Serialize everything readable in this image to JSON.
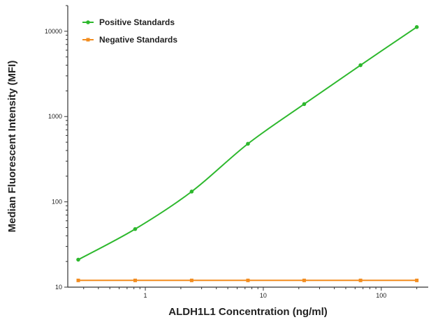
{
  "chart_data": {
    "type": "scatter",
    "xlabel": "ALDH1L1 Concentration (ng/ml)",
    "ylabel": "Median Fluorescent Intensity (MFI)",
    "xscale": "log",
    "yscale": "log",
    "xlim": [
      0.22,
      250
    ],
    "ylim": [
      10,
      20000
    ],
    "x_ticks": [
      1,
      10,
      100
    ],
    "x_tick_labels": [
      "1",
      "10",
      "100"
    ],
    "y_ticks": [
      10,
      100,
      1000,
      10000
    ],
    "y_tick_labels": [
      "10",
      "100",
      "1000",
      "10000"
    ],
    "legend_position": "top-left",
    "grid": false,
    "series": [
      {
        "name": "Positive Standards",
        "color": "#2db82d",
        "marker": "circle",
        "fit": "smooth curve",
        "x": [
          0.27,
          0.82,
          2.47,
          7.41,
          22.2,
          66.7,
          200
        ],
        "y": [
          21,
          48,
          132,
          480,
          1400,
          4000,
          11200
        ]
      },
      {
        "name": "Negative Standards",
        "color": "#f28c1e",
        "marker": "square",
        "fit": "line",
        "x": [
          0.27,
          0.82,
          2.47,
          7.41,
          22.2,
          66.7,
          200
        ],
        "y": [
          12,
          12,
          12,
          12,
          12,
          12,
          12
        ]
      }
    ]
  }
}
